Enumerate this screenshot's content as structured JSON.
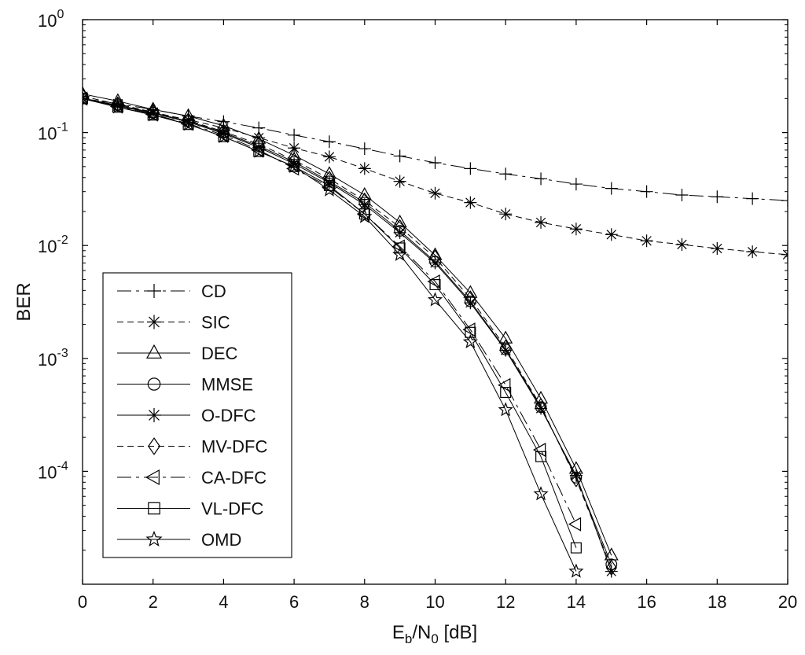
{
  "chart_data": {
    "type": "line",
    "title": "",
    "xlabel": {
      "base": "E",
      "sub1": "b",
      "mid": "/N",
      "sub2": "0",
      "tail": " [dB]"
    },
    "ylabel": "BER",
    "xlim": [
      0,
      20
    ],
    "ylim_log10": [
      -5,
      0
    ],
    "y_scale": "log",
    "grid": false,
    "legend_position": "bottom-left",
    "x_ticks": [
      0,
      2,
      4,
      6,
      8,
      10,
      12,
      14,
      16,
      18,
      20
    ],
    "y_ticks": [
      {
        "exp": 0,
        "base": "10",
        "power": "0"
      },
      {
        "exp": -1,
        "base": "10",
        "power": "-1"
      },
      {
        "exp": -2,
        "base": "10",
        "power": "-2"
      },
      {
        "exp": -3,
        "base": "10",
        "power": "-3"
      },
      {
        "exp": -4,
        "base": "10",
        "power": "-4"
      }
    ],
    "series": [
      {
        "name": "CD",
        "marker": "plus",
        "dash": "18,6,4,6",
        "x": [
          0,
          1,
          2,
          3,
          4,
          5,
          6,
          7,
          8,
          9,
          10,
          11,
          12,
          13,
          14,
          15,
          16,
          17,
          18,
          19,
          20
        ],
        "y": [
          0.2,
          0.18,
          0.16,
          0.14,
          0.125,
          0.11,
          0.095,
          0.083,
          0.072,
          0.062,
          0.054,
          0.048,
          0.043,
          0.039,
          0.035,
          0.032,
          0.03,
          0.028,
          0.027,
          0.026,
          0.025
        ]
      },
      {
        "name": "SIC",
        "marker": "asterisk",
        "dash": "8,5",
        "x": [
          0,
          1,
          2,
          3,
          4,
          5,
          6,
          7,
          8,
          9,
          10,
          11,
          12,
          13,
          14,
          15,
          16,
          17,
          18,
          19,
          20
        ],
        "y": [
          0.2,
          0.18,
          0.15,
          0.13,
          0.11,
          0.09,
          0.073,
          0.061,
          0.048,
          0.037,
          0.029,
          0.024,
          0.019,
          0.016,
          0.014,
          0.0125,
          0.011,
          0.0102,
          0.0094,
          0.0088,
          0.0083
        ]
      },
      {
        "name": "DEC",
        "marker": "triangle",
        "dash": "",
        "x": [
          0,
          1,
          2,
          3,
          4,
          5,
          6,
          7,
          8,
          9,
          10,
          11,
          12,
          13,
          14,
          15
        ],
        "y": [
          0.22,
          0.19,
          0.16,
          0.14,
          0.115,
          0.088,
          0.063,
          0.043,
          0.028,
          0.016,
          0.0082,
          0.0038,
          0.0015,
          0.00044,
          0.000105,
          1.8e-05
        ]
      },
      {
        "name": "MMSE",
        "marker": "circle",
        "dash": "",
        "x": [
          0,
          1,
          2,
          3,
          4,
          5,
          6,
          7,
          8,
          9,
          10,
          11,
          12,
          13,
          14,
          15
        ],
        "y": [
          0.2,
          0.175,
          0.15,
          0.126,
          0.1,
          0.076,
          0.055,
          0.037,
          0.024,
          0.0135,
          0.0072,
          0.0032,
          0.0012,
          0.00037,
          8.8e-05,
          1.5e-05
        ]
      },
      {
        "name": "O-DFC",
        "marker": "asterisk",
        "dash": "",
        "x": [
          0,
          1,
          2,
          3,
          4,
          5,
          6,
          7,
          8,
          9,
          10,
          11,
          12,
          13,
          14,
          15
        ],
        "y": [
          0.2,
          0.172,
          0.148,
          0.124,
          0.098,
          0.074,
          0.053,
          0.036,
          0.023,
          0.013,
          0.007,
          0.0031,
          0.00118,
          0.00036,
          9.2e-05,
          1.3e-05
        ]
      },
      {
        "name": "MV-DFC",
        "marker": "diamond",
        "dash": "8,5",
        "x": [
          0,
          1,
          2,
          3,
          4,
          5,
          6,
          7,
          8,
          9,
          10,
          11,
          12,
          13,
          14,
          15
        ],
        "y": [
          0.21,
          0.178,
          0.152,
          0.128,
          0.102,
          0.079,
          0.057,
          0.039,
          0.025,
          0.0145,
          0.0078,
          0.0034,
          0.00125,
          0.00038,
          8.5e-05,
          1.4e-05
        ]
      },
      {
        "name": "CA-DFC",
        "marker": "triangle-left",
        "dash": "18,6,4,6",
        "x": [
          0,
          1,
          2,
          3,
          4,
          5,
          6,
          7,
          8,
          9,
          10,
          11,
          12,
          13,
          14
        ],
        "y": [
          0.2,
          0.17,
          0.145,
          0.12,
          0.095,
          0.07,
          0.048,
          0.033,
          0.019,
          0.0098,
          0.0048,
          0.0018,
          0.00058,
          0.000155,
          3.4e-05
        ]
      },
      {
        "name": "VL-DFC",
        "marker": "square",
        "dash": "",
        "x": [
          0,
          1,
          2,
          3,
          4,
          5,
          6,
          7,
          8,
          9,
          10,
          11,
          12,
          13,
          14
        ],
        "y": [
          0.2,
          0.168,
          0.143,
          0.118,
          0.092,
          0.068,
          0.05,
          0.034,
          0.019,
          0.0095,
          0.0045,
          0.0017,
          0.0005,
          0.000135,
          2.1e-05
        ]
      },
      {
        "name": "OMD",
        "marker": "star",
        "dash": "",
        "x": [
          0,
          1,
          2,
          3,
          4,
          5,
          6,
          7,
          8,
          9,
          10,
          11,
          12,
          13,
          14
        ],
        "y": [
          0.2,
          0.168,
          0.143,
          0.118,
          0.092,
          0.068,
          0.05,
          0.031,
          0.018,
          0.0083,
          0.0033,
          0.0014,
          0.00035,
          6.3e-05,
          1.3e-05
        ]
      }
    ]
  }
}
